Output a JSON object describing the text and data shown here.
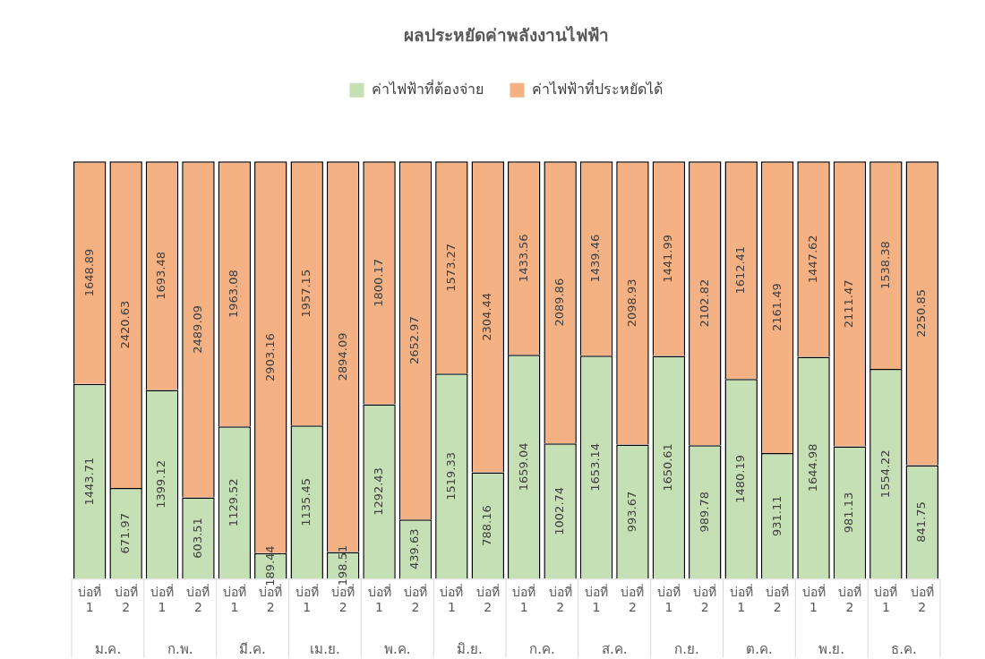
{
  "chart_data": {
    "type": "bar",
    "title": "ผลประหยัดค่าพลังงานไฟฟ้า",
    "stacked": true,
    "data_labels": true,
    "legend": "top",
    "grid": false,
    "categories": [
      "บ่อที่ 1",
      "บ่อที่ 2",
      "บ่อที่ 1",
      "บ่อที่ 2",
      "บ่อที่ 1",
      "บ่อที่ 2",
      "บ่อที่ 1",
      "บ่อที่ 2",
      "บ่อที่ 1",
      "บ่อที่ 2",
      "บ่อที่ 1",
      "บ่อที่ 2",
      "บ่อที่ 1",
      "บ่อที่ 2",
      "บ่อที่ 1",
      "บ่อที่ 2",
      "บ่อที่ 1",
      "บ่อที่ 2",
      "บ่อที่ 1",
      "บ่อที่ 2",
      "บ่อที่ 1",
      "บ่อที่ 2",
      "บ่อที่ 1",
      "บ่อที่ 2"
    ],
    "annotations": [
      "ม.ค.",
      "ก.พ.",
      "มี.ค.",
      "เม.ย.",
      "พ.ค.",
      "มิ.ย.",
      "ก.ค.",
      "ส.ค.",
      "ก.ย.",
      "ต.ค.",
      "พ.ย.",
      "ธ.ค."
    ],
    "series": [
      {
        "name": "ค่าไฟฟ้าที่ต้องจ่าย",
        "color": "#c5e0b4",
        "values": [
          1443.71,
          671.97,
          1399.12,
          603.51,
          1129.52,
          189.44,
          1135.45,
          198.51,
          1292.43,
          439.63,
          1519.33,
          788.16,
          1659.04,
          1002.74,
          1653.14,
          993.67,
          1650.61,
          989.78,
          1480.19,
          931.11,
          1644.98,
          981.13,
          1554.22,
          841.75
        ]
      },
      {
        "name": "ค่าไฟฟ้าที่ประหยัดได้",
        "color": "#f4b183",
        "values": [
          1648.89,
          2420.63,
          1693.48,
          2489.09,
          1963.08,
          2903.16,
          1957.15,
          2894.09,
          1800.17,
          2652.97,
          1573.27,
          2304.44,
          1433.56,
          2089.86,
          1439.46,
          2098.93,
          1441.99,
          2102.82,
          1612.41,
          2161.49,
          1447.62,
          2111.47,
          1538.38,
          2250.85
        ]
      }
    ]
  }
}
